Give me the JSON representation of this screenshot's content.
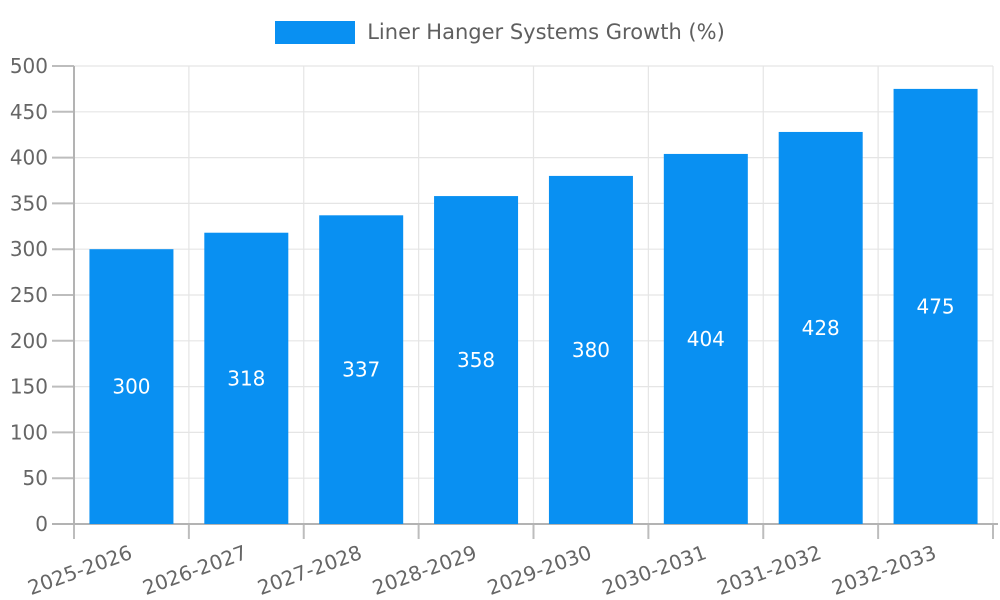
{
  "chart_data": {
    "type": "bar",
    "title": "",
    "legend_label": "Liner Hanger Systems Growth (%)",
    "legend_position": "top-center",
    "categories": [
      "2025-2026",
      "2026-2027",
      "2027-2028",
      "2028-2029",
      "2029-2030",
      "2030-2031",
      "2031-2032",
      "2032-2033"
    ],
    "values": [
      300,
      318,
      337,
      358,
      380,
      404,
      428,
      475
    ],
    "xlabel": "",
    "ylabel": "",
    "ylim": [
      0,
      500
    ],
    "yticks": [
      0,
      50,
      100,
      150,
      200,
      250,
      300,
      350,
      400,
      450,
      500
    ],
    "grid": true,
    "bar_value_labels": "inside-center",
    "x_label_rotation_deg": -20
  },
  "style": {
    "bar_color": "#0990f2",
    "bar_label_color": "#ffffff",
    "axis_text_color": "#666666",
    "legend_text_color": "#5f5f5f",
    "grid_color": "#e5e5e5",
    "axis_line_color": "#b3b3b3",
    "tick_color": "#bdbdbd",
    "background": "#ffffff"
  }
}
